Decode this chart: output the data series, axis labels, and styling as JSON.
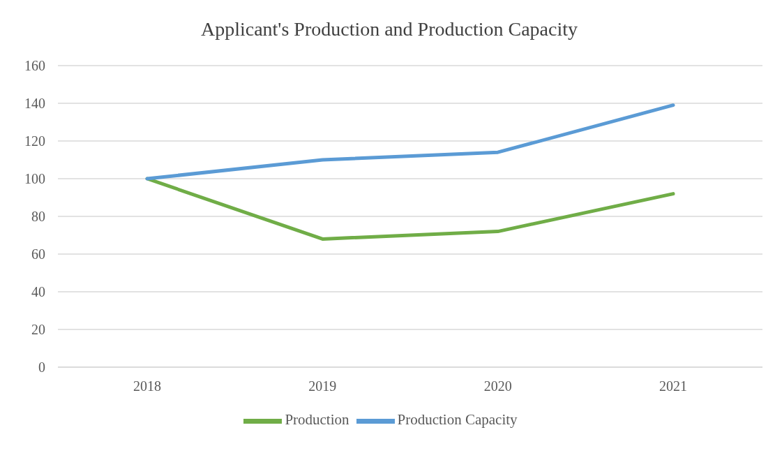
{
  "chart_data": {
    "type": "line",
    "title": "Applicant's Production and Production Capacity",
    "categories": [
      "2018",
      "2019",
      "2020",
      "2021"
    ],
    "series": [
      {
        "name": "Production",
        "color": "#70ad47",
        "values": [
          100,
          68,
          72,
          92
        ]
      },
      {
        "name": "Production Capacity",
        "color": "#5b9bd5",
        "values": [
          100,
          110,
          114,
          139
        ]
      }
    ],
    "ylim": [
      0,
      160
    ],
    "yticks": [
      0,
      20,
      40,
      60,
      80,
      100,
      120,
      140,
      160
    ],
    "grid": "y",
    "legend": "bottom",
    "marker": "none",
    "line_style": "solid"
  }
}
